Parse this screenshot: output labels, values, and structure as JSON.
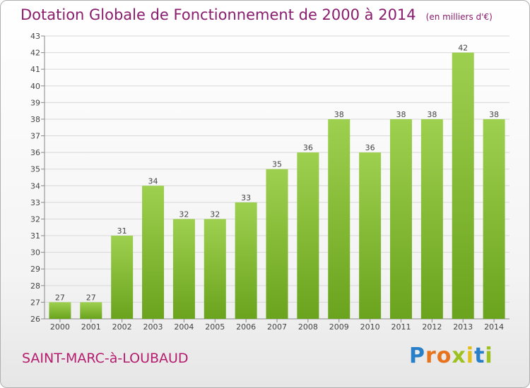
{
  "header": {
    "title": "Dotation Globale de Fonctionnement de 2000 à 2014",
    "unit": "(en milliers d'€)"
  },
  "footer": {
    "town": "SAINT-MARC-à-LOUBAUD",
    "logo": "Proxiti"
  },
  "colors": {
    "title": "#8a1c6e",
    "town": "#b51c6d",
    "bar_top": "#9ed04f",
    "bar_bottom": "#6aa31d",
    "grid": "#d8d8d8",
    "logo": [
      "#2a7fc9",
      "#e8731d",
      "#e8731d",
      "#9dc21f",
      "#e2c01b",
      "#2a7fc9",
      "#9dc21f"
    ]
  },
  "chart_data": {
    "type": "bar",
    "title": "Dotation Globale de Fonctionnement de 2000 à 2014",
    "subtitle": "(en milliers d'€)",
    "categories": [
      "2000",
      "2001",
      "2002",
      "2003",
      "2004",
      "2005",
      "2006",
      "2007",
      "2008",
      "2009",
      "2010",
      "2011",
      "2012",
      "2013",
      "2014"
    ],
    "values": [
      27,
      27,
      31,
      34,
      32,
      32,
      33,
      35,
      36,
      38,
      36,
      38,
      38,
      42,
      38
    ],
    "ylim": [
      26,
      43
    ],
    "yticks": [
      26,
      27,
      28,
      29,
      30,
      31,
      32,
      33,
      34,
      35,
      36,
      37,
      38,
      39,
      40,
      41,
      42,
      43
    ],
    "grid": true,
    "xlabel": "",
    "ylabel": ""
  }
}
